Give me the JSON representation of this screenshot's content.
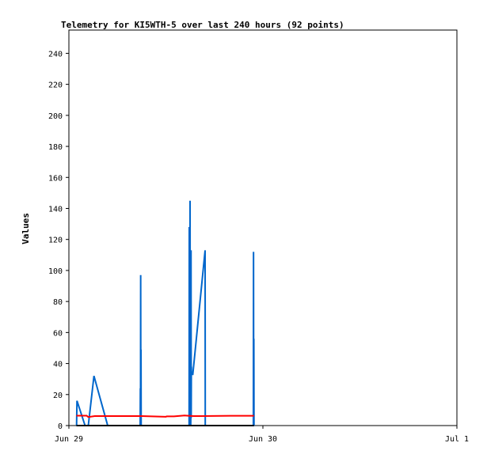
{
  "chart_data": {
    "type": "line",
    "title": "Telemetry for KI5WTH-5 over last 240 hours (92 points)",
    "xlabel": "",
    "ylabel": "Values",
    "x_ticks": [
      "Jun 29",
      "Jun 30",
      "Jul 1"
    ],
    "xlim": [
      0,
      48
    ],
    "ylim": [
      0,
      255
    ],
    "y_ticks": [
      0,
      20,
      40,
      60,
      80,
      100,
      120,
      140,
      160,
      180,
      200,
      220,
      240
    ],
    "grid": false,
    "series": [
      {
        "color": "#0066cc",
        "x": [
          0.93,
          0.95,
          1.0,
          2.0,
          2.4,
          3.1,
          4.8,
          8.8,
          8.82,
          8.84,
          8.86,
          8.88,
          8.9,
          8.92,
          8.94,
          8.96,
          8.98,
          9.0,
          9.02,
          9.04,
          14.85,
          14.87,
          14.89,
          14.91,
          14.93,
          14.95,
          14.97,
          14.99,
          15.01,
          15.03,
          15.05,
          15.07,
          15.09,
          15.11,
          15.13,
          15.15,
          15.17,
          15.19,
          15.21,
          15.23,
          15.25,
          15.27,
          15.29,
          15.31,
          15.33,
          16.85,
          16.87,
          16.89,
          22.82,
          22.84,
          22.86,
          22.88,
          22.9
        ],
        "y": [
          0,
          0,
          16,
          0,
          0,
          32,
          0,
          0,
          0,
          24,
          1,
          97,
          2,
          49,
          0,
          0,
          0,
          0,
          0,
          0,
          0,
          0,
          128,
          0,
          5,
          112,
          2,
          145,
          0,
          5,
          112,
          0,
          8,
          113,
          5,
          38,
          33,
          33,
          33,
          33,
          33,
          33,
          33,
          33,
          33,
          113,
          0,
          0,
          0,
          112,
          5,
          56,
          0
        ]
      },
      {
        "color": "#ff0000",
        "x": [
          0.93,
          2.2,
          2.4,
          3.2,
          9.0,
          12.0,
          12.1,
          13.0,
          14.3,
          14.8,
          15.4,
          20.0,
          22.9
        ],
        "y": [
          6.4,
          6.4,
          5.5,
          6.1,
          6.1,
          5.7,
          5.9,
          5.9,
          6.5,
          6.3,
          6.1,
          6.3,
          6.3
        ]
      },
      {
        "color": "#000000",
        "x": [
          0.93,
          22.9
        ],
        "y": [
          0,
          0
        ]
      }
    ]
  }
}
